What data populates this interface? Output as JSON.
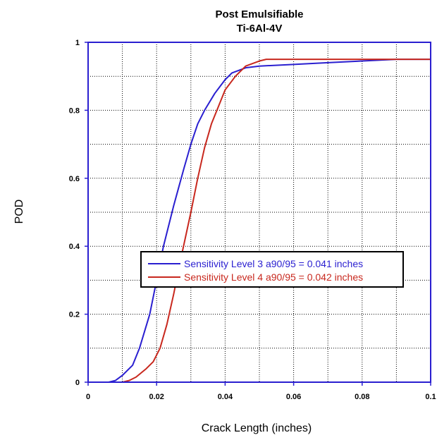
{
  "chart_data": {
    "type": "line",
    "title": "Post Emulsifiable",
    "subtitle": "Ti-6Al-4V",
    "xlabel": "Crack Length (inches)",
    "ylabel": "POD",
    "xlim": [
      0,
      0.1
    ],
    "ylim": [
      0,
      1
    ],
    "x_ticks": [
      0,
      0.02,
      0.04,
      0.06,
      0.08,
      0.1
    ],
    "x_tick_labels": [
      "0",
      "0.02",
      "0.04",
      "0.06",
      "0.08",
      "0.1"
    ],
    "y_ticks": [
      0,
      0.2,
      0.4,
      0.6,
      0.8,
      1
    ],
    "y_tick_labels": [
      "0",
      "0.2",
      "0.4",
      "0.6",
      "0.8",
      "1"
    ],
    "grid": true,
    "legend_position": "center-right",
    "series": [
      {
        "name": "Sensitivity Level 3 a90/95 = 0.041 inches",
        "color": "#2a1fd0",
        "x": [
          0.006,
          0.008,
          0.01,
          0.013,
          0.015,
          0.018,
          0.02,
          0.022,
          0.025,
          0.028,
          0.03,
          0.032,
          0.034,
          0.037,
          0.04,
          0.042,
          0.046,
          0.05,
          0.06,
          0.07,
          0.08,
          0.09,
          0.1
        ],
        "values": [
          0.0,
          0.005,
          0.02,
          0.05,
          0.1,
          0.2,
          0.3,
          0.4,
          0.52,
          0.63,
          0.7,
          0.76,
          0.8,
          0.85,
          0.89,
          0.91,
          0.925,
          0.93,
          0.935,
          0.94,
          0.945,
          0.95,
          0.95
        ]
      },
      {
        "name": "Sensitivity Level 4 a90/95 = 0.042 inches",
        "color": "#c8281e",
        "x": [
          0.01,
          0.012,
          0.014,
          0.017,
          0.019,
          0.021,
          0.023,
          0.025,
          0.027,
          0.03,
          0.032,
          0.034,
          0.036,
          0.038,
          0.04,
          0.043,
          0.046,
          0.05,
          0.052,
          0.06,
          0.07,
          0.08,
          0.09,
          0.1
        ],
        "values": [
          0.0,
          0.005,
          0.015,
          0.04,
          0.06,
          0.1,
          0.17,
          0.26,
          0.36,
          0.5,
          0.6,
          0.69,
          0.76,
          0.81,
          0.86,
          0.9,
          0.93,
          0.945,
          0.95,
          0.95,
          0.95,
          0.95,
          0.95,
          0.95
        ]
      }
    ]
  },
  "colors": {
    "plot_frame": "#2a1fd0",
    "grid": "#000000",
    "legend_border": "#000000"
  }
}
